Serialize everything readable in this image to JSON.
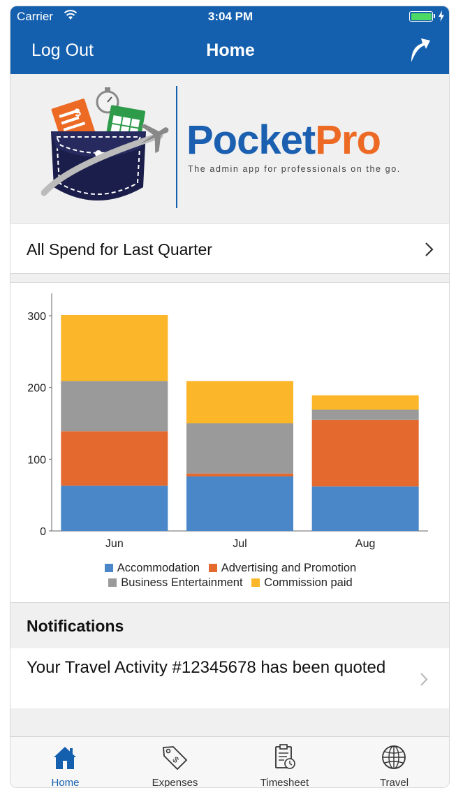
{
  "status_bar": {
    "carrier": "Carrier",
    "time": "3:04 PM"
  },
  "nav": {
    "left_button": "Log Out",
    "title": "Home",
    "right_icon": "share-arrow-icon"
  },
  "logo": {
    "brand_part1": "Pocket",
    "brand_part2": "Pro",
    "tagline": "The admin app for professionals on the go."
  },
  "spend": {
    "label": "All Spend for Last Quarter"
  },
  "chart_data": {
    "type": "bar",
    "stacked": true,
    "categories": [
      "Jun",
      "Jul",
      "Aug"
    ],
    "series": [
      {
        "name": "Accommodation",
        "color": "#4a87c8",
        "values": [
          63,
          76,
          62
        ]
      },
      {
        "name": "Advertising and Promotion",
        "color": "#e4692f",
        "values": [
          76,
          4,
          93
        ]
      },
      {
        "name": "Business Entertainment",
        "color": "#9a9a9a",
        "values": [
          70,
          70,
          14
        ]
      },
      {
        "name": "Commission paid",
        "color": "#fbb62a",
        "values": [
          92,
          59,
          20
        ]
      }
    ],
    "yticks": [
      0,
      100,
      200,
      300
    ],
    "ylim": [
      0,
      300
    ],
    "grid": false,
    "legend": "bottom"
  },
  "notifications": {
    "title": "Notifications",
    "items": [
      {
        "text": "Your Travel Activity #12345678 has been quoted"
      }
    ]
  },
  "tabs": [
    {
      "label": "Home",
      "icon": "home-icon",
      "active": true
    },
    {
      "label": "Expenses",
      "icon": "price-tag-icon",
      "active": false
    },
    {
      "label": "Timesheet",
      "icon": "clipboard-clock-icon",
      "active": false
    },
    {
      "label": "Travel",
      "icon": "globe-icon",
      "active": false
    }
  ],
  "colors": {
    "primary": "#1560ae",
    "brand_blue": "#1a5fb0",
    "brand_orange": "#ec6a24"
  }
}
